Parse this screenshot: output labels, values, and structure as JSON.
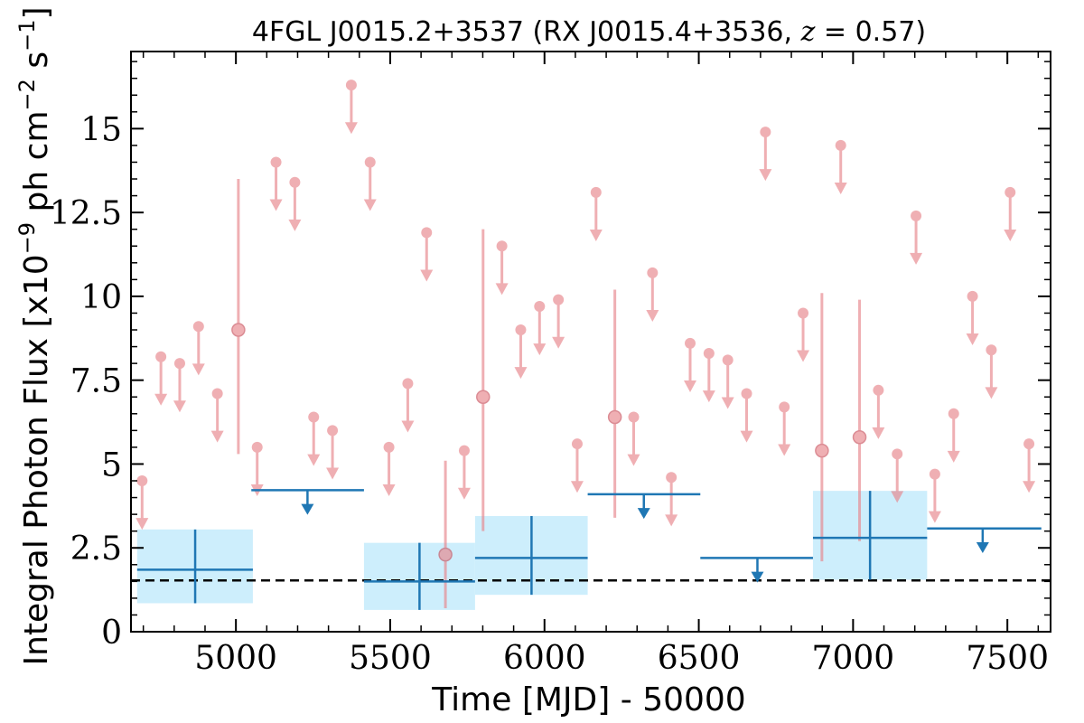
{
  "chart_data": {
    "type": "scatter",
    "title": {
      "main": "4FGL J0015.2+3537 (RX J0015.4+3536, ",
      "z_var": "z",
      "z_eq": " = 0.57",
      "close": ")"
    },
    "xlabel": "Time [MJD] - 50000",
    "ylabel": {
      "prefix": "Integral Photon Flux [x10",
      "exp1": "−9",
      "mid": " ph cm",
      "exp2": "−2",
      "mid2": " s",
      "exp3": "−1",
      "suffix": "]"
    },
    "xlim": [
      4660,
      7640
    ],
    "ylim": [
      0,
      17.3
    ],
    "x_ticks": [
      5000,
      5500,
      6000,
      6500,
      7000,
      7500
    ],
    "x_tick_labels": [
      "5000",
      "5500",
      "6000",
      "6500",
      "7000",
      "7500"
    ],
    "y_ticks": [
      0,
      2.5,
      5,
      7.5,
      10,
      12.5,
      15
    ],
    "y_tick_labels": [
      "0",
      "2.5",
      "5",
      "7.5",
      "10",
      "12.5",
      "15"
    ],
    "grid": false,
    "legend": "none",
    "reference_line": {
      "y": 1.53,
      "style": "dashed",
      "color": "#000000"
    },
    "colors": {
      "monthly": "#e8858c",
      "long_bins": "#1f77b4",
      "band_fill": "#cdeefc"
    },
    "monthly": {
      "upper_limits": [
        [
          4696,
          4.5
        ],
        [
          4757,
          8.2
        ],
        [
          4818,
          8.0
        ],
        [
          4879,
          9.1
        ],
        [
          4940,
          7.1
        ],
        [
          5069,
          5.5
        ],
        [
          5130,
          14.0
        ],
        [
          5191,
          13.4
        ],
        [
          5252,
          6.4
        ],
        [
          5313,
          6.0
        ],
        [
          5374,
          16.3
        ],
        [
          5435,
          14.0
        ],
        [
          5496,
          5.5
        ],
        [
          5557,
          7.4
        ],
        [
          5618,
          11.9
        ],
        [
          5740,
          5.4
        ],
        [
          5862,
          11.5
        ],
        [
          5923,
          9.0
        ],
        [
          5984,
          9.7
        ],
        [
          6045,
          9.9
        ],
        [
          6106,
          5.6
        ],
        [
          6167,
          13.1
        ],
        [
          6289,
          6.4
        ],
        [
          6350,
          10.7
        ],
        [
          6411,
          4.6
        ],
        [
          6472,
          8.6
        ],
        [
          6533,
          8.3
        ],
        [
          6594,
          8.1
        ],
        [
          6655,
          7.1
        ],
        [
          6716,
          14.9
        ],
        [
          6777,
          6.7
        ],
        [
          6838,
          9.5
        ],
        [
          6960,
          14.5
        ],
        [
          7082,
          7.2
        ],
        [
          7143,
          5.3
        ],
        [
          7204,
          12.4
        ],
        [
          7265,
          4.7
        ],
        [
          7326,
          6.5
        ],
        [
          7387,
          10.0
        ],
        [
          7448,
          8.4
        ],
        [
          7509,
          13.1
        ],
        [
          7570,
          5.6
        ]
      ],
      "ul_arrow_length": 1.35,
      "detections": [
        {
          "x": 5008,
          "y": 9.0,
          "lo": 5.3,
          "hi": 13.5
        },
        {
          "x": 5679,
          "y": 2.3,
          "lo": 0.7,
          "hi": 5.1
        },
        {
          "x": 5801,
          "y": 7.0,
          "lo": 3.0,
          "hi": 12.0
        },
        {
          "x": 6228,
          "y": 6.4,
          "lo": 3.4,
          "hi": 10.2
        },
        {
          "x": 6899,
          "y": 5.4,
          "lo": 2.1,
          "hi": 10.1
        },
        {
          "x": 7021,
          "y": 5.8,
          "lo": 2.7,
          "hi": 9.9
        }
      ]
    },
    "long_bins": {
      "detections": [
        {
          "x": 4868,
          "x0": 4680,
          "x1": 5055,
          "y": 1.85,
          "lo": 0.85,
          "hi": 3.05
        },
        {
          "x": 5595,
          "x0": 5415,
          "x1": 5775,
          "y": 1.5,
          "lo": 0.65,
          "hi": 2.65
        },
        {
          "x": 5958,
          "x0": 5775,
          "x1": 6140,
          "y": 2.2,
          "lo": 1.1,
          "hi": 3.45
        },
        {
          "x": 7055,
          "x0": 6870,
          "x1": 7240,
          "y": 2.8,
          "lo": 1.55,
          "hi": 4.2
        }
      ],
      "upper_limits": [
        {
          "x": 5232,
          "x0": 5050,
          "x1": 5415,
          "y": 4.22
        },
        {
          "x": 6322,
          "x0": 6140,
          "x1": 6505,
          "y": 4.1
        },
        {
          "x": 6690,
          "x0": 6505,
          "x1": 6870,
          "y": 2.2
        },
        {
          "x": 7420,
          "x0": 7240,
          "x1": 7610,
          "y": 3.08
        }
      ],
      "ul_arrow_length": 0.6
    }
  }
}
